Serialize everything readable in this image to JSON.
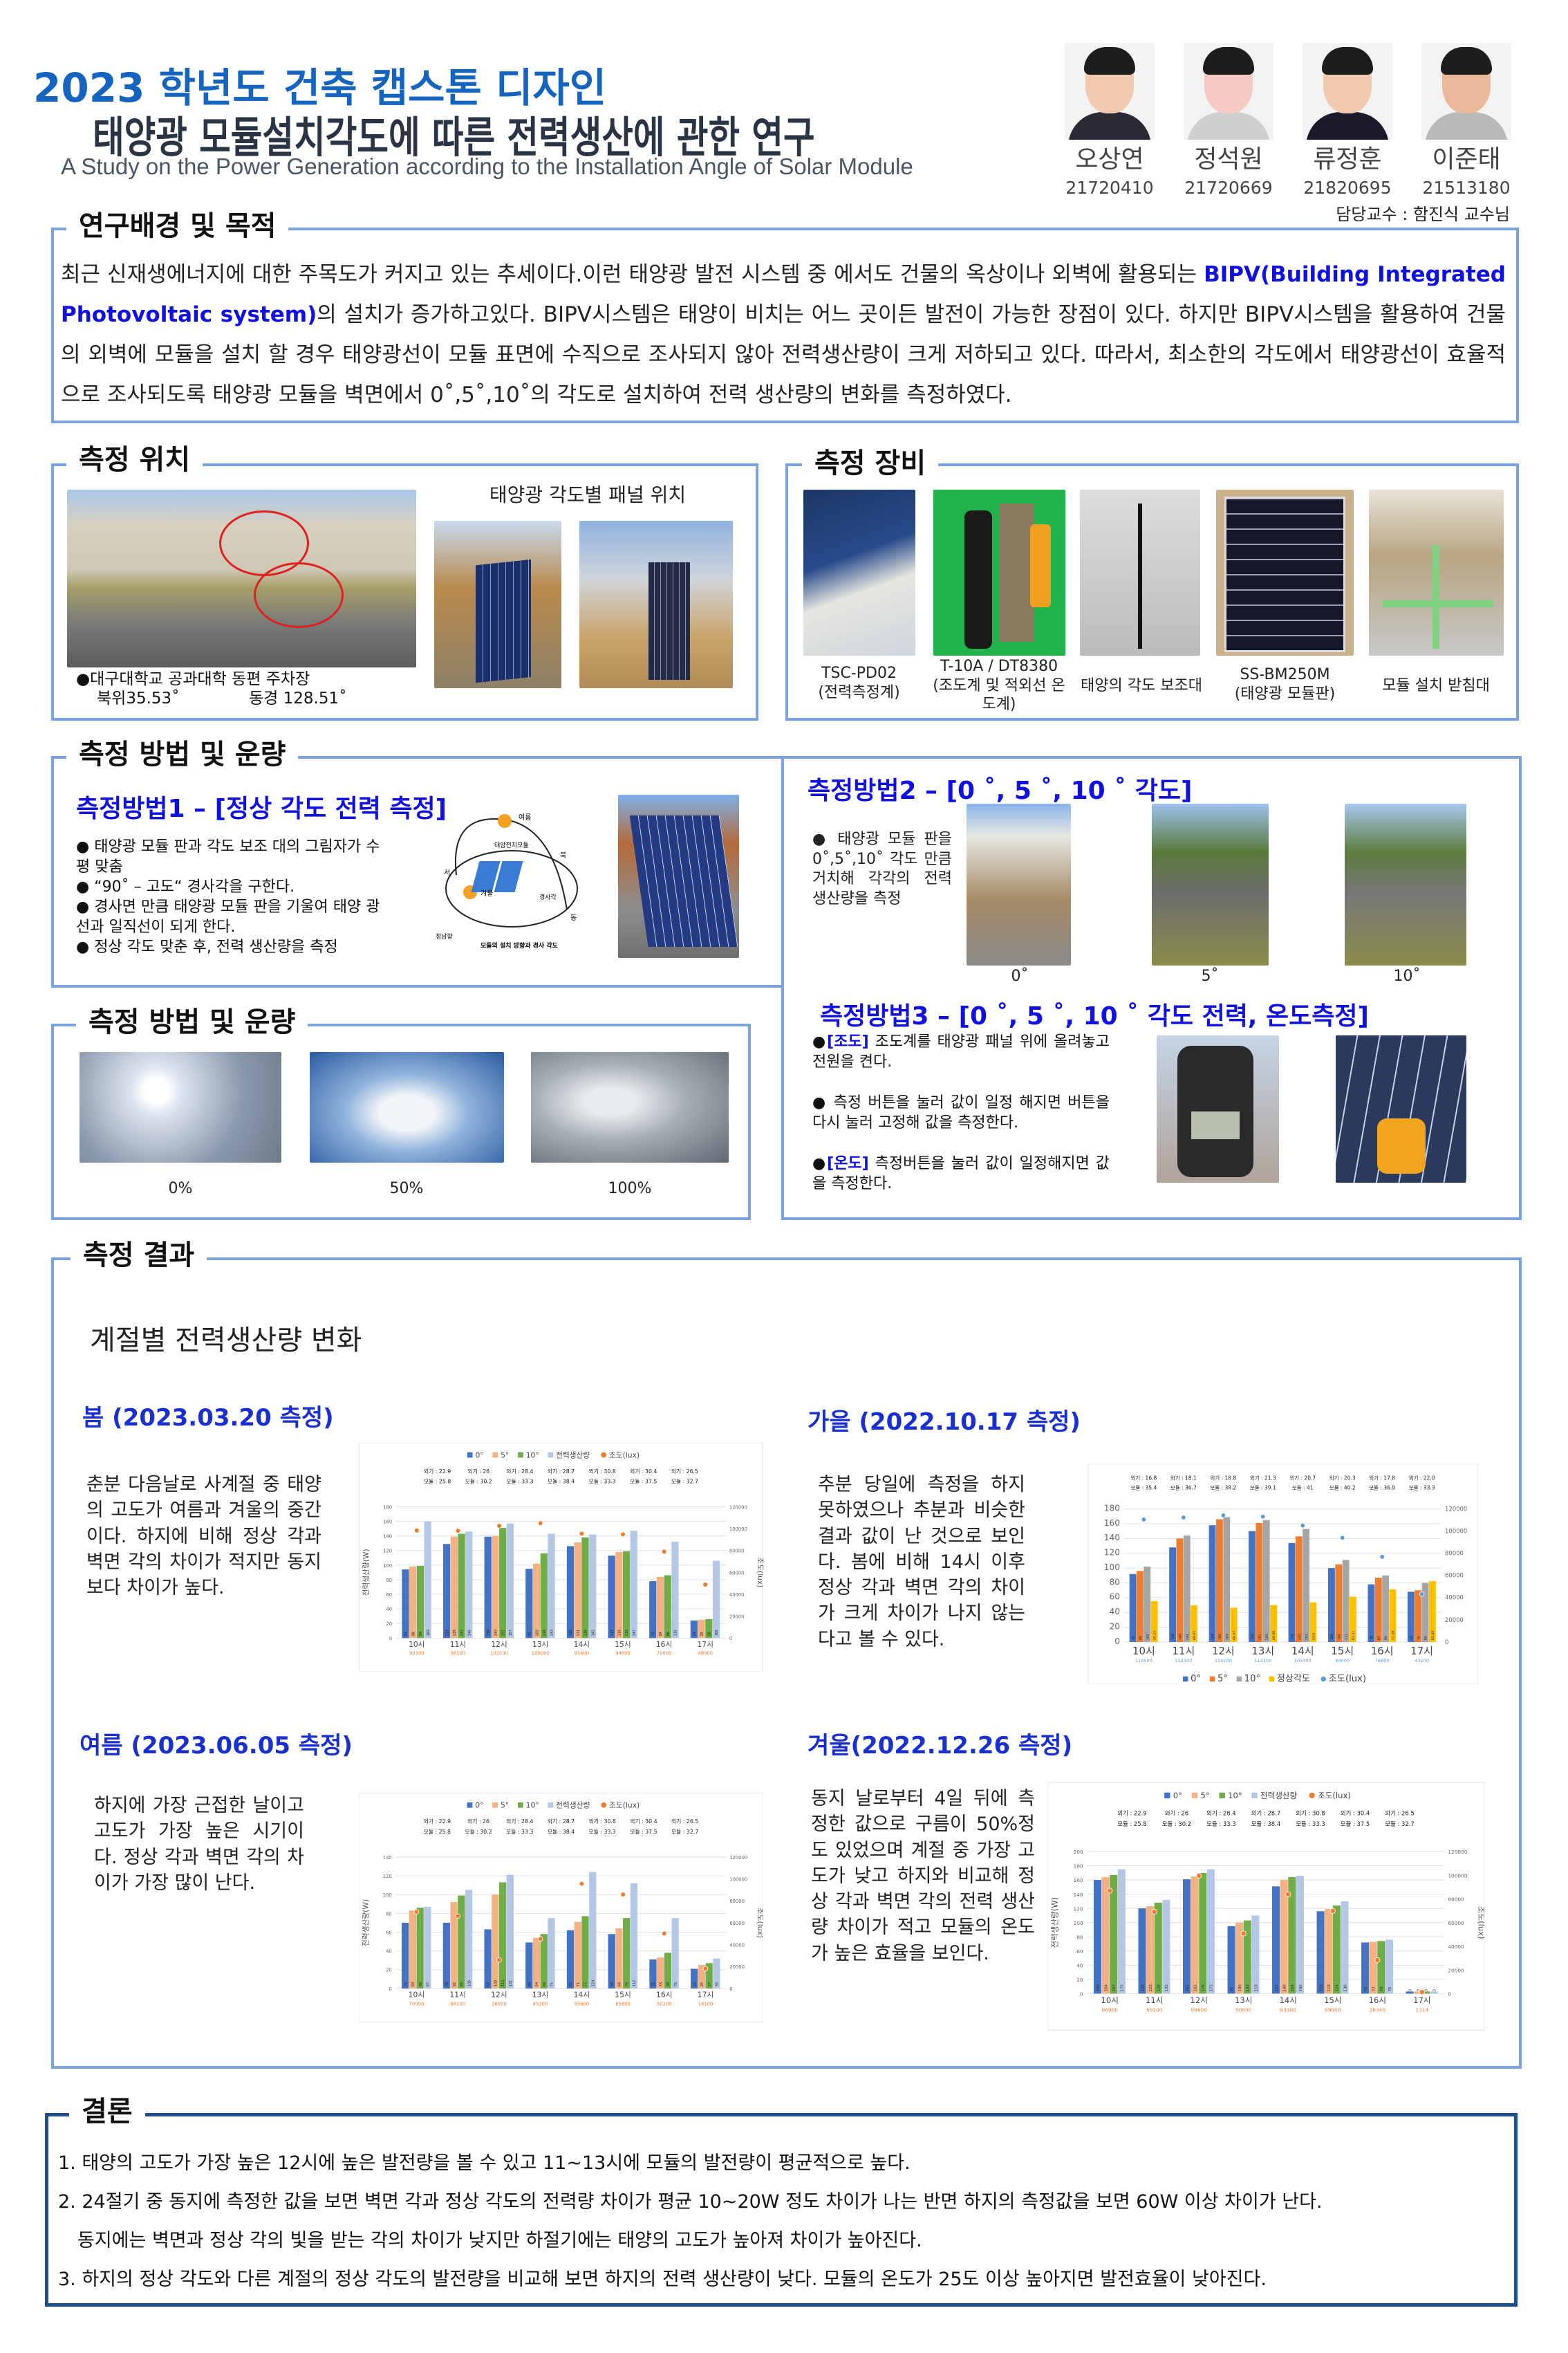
{
  "header": {
    "course": "2023 학년도 건축 캡스톤 디자인",
    "title": "태양광 모듈설치각도에 따른 전력생산에 관한 연구",
    "subtitle": "A Study on the Power Generation according to the Installation Angle of Solar Module",
    "members": [
      {
        "name": "오상연",
        "id": "21720410"
      },
      {
        "name": "정석원",
        "id": "21720669"
      },
      {
        "name": "류정훈",
        "id": "21820695"
      },
      {
        "name": "이준태",
        "id": "21513180"
      }
    ],
    "advisor": "담당교수 : 함진식 교수님"
  },
  "background": {
    "title": "연구배경 및 목적",
    "text_1": "최근 신재생에너지에 대한 주목도가 커지고 있는 추세이다.이런 태양광 발전 시스템 중 에서도 건물의 옥상이나 외벽에 활용되는 ",
    "highlight": "BIPV(Building Integrated Photovoltaic system)",
    "text_2": "의 설치가 증가하고있다. BIPV시스템은 태양이 비치는 어느 곳이든 발전이 가능한 장점이 있다. 하지만 BIPV시스템을 활용하여 건물의 외벽에 모듈을 설치 할 경우 태양광선이 모듈 표면에 수직으로 조사되지 않아 전력생산량이 크게 저하되고 있다. 따라서, 최소한의 각도에서 태양광선이 효율적으로 조사되도록 태양광 모듈을 벽면에서 0˚,5˚,10˚의 각도로 설치하여 전력 생산량의 변화를 측정하였다."
  },
  "location": {
    "title": "측정 위치",
    "panel_label": "태양광 각도별 패널 위치",
    "caption_1": "●대구대학교 공과대학 동편 주차장",
    "lat": "북위35.53˚",
    "lon": "동경 128.51˚"
  },
  "equipment": {
    "title": "측정 장비",
    "items": [
      {
        "model": "TSC-PD02",
        "desc": "(전력측정계)"
      },
      {
        "model": "T-10A / DT8380",
        "desc": "(조도계 및 적외선 온도계)"
      },
      {
        "model": "",
        "desc": "태양의 각도 보조대"
      },
      {
        "model": "SS-BM250M",
        "desc": "(태양광 모듈판)"
      },
      {
        "model": "",
        "desc": "모듈 설치 받침대"
      }
    ]
  },
  "method": {
    "title": "측정 방법 및 운량",
    "m1_title": "측정방법1 – [정상 각도 전력 측정]",
    "m1_bullets": [
      "● 태양광 모듈 판과 각도 보조 대의 그림자가 수평 맞춤",
      "● “90˚ – 고도“ 경사각을 구한다.",
      "● 경사면 만큼 태양광 모듈 판을 기울여 태양 광선과 일직선이 되게 한다.",
      "● 정상 각도 맞춘 후, 전력 생산량을 측정"
    ],
    "diagram": {
      "summer": "여름",
      "winter": "겨울",
      "module": "태양전지모듈",
      "north": "북",
      "west": "서",
      "east": "동",
      "south": "정남향",
      "tilt": "경사각",
      "caption": "모듈의 설치 방향과 경사 각도"
    },
    "m2_title": "측정방법2 – [0 ˚, 5 ˚, 10 ˚  각도]",
    "m2_text": "● 태양광 모듈 판을 0˚,5˚,10˚ 각도 만큼 거치해 각각의 전력 생산량을 측정",
    "m2_labels": [
      "0˚",
      "5˚",
      "10˚"
    ],
    "m3_title": "측정방법3 – [0 ˚, 5 ˚, 10 ˚  각도 전력, 온도측정]",
    "m3_items": [
      {
        "tag": "[조도]",
        "text": " 조도계를 태양광 패널 위에 올려놓고 전원을 켠다."
      },
      {
        "tag": "",
        "text": " 측정 버튼을 눌러 값이 일정 해지면 버튼을 다시 눌러 고정해 값을 측정한다."
      },
      {
        "tag": "[온도]",
        "text": " 측정버튼을 눌러 값이 일정해지면 값을 측정한다."
      }
    ],
    "cloud_title": "측정 방법 및 운량",
    "cloud_labels": [
      "0%",
      "50%",
      "100%"
    ]
  },
  "results": {
    "title": "측정 결과",
    "subtitle": "계절별 전력생산량 변화",
    "spring": {
      "heading": "봄 (2023.03.20 측정)",
      "text": "춘분 다음날로 사계절 중 태양의 고도가 여름과 겨울의 중간이다. 하지에 비해 정상 각과 벽면 각의 차이가 적지만 동지보다 차이가 높다."
    },
    "autumn": {
      "heading": "가을 (2022.10.17 측정)",
      "text": "추분 당일에 측정을 하지 못하였으나 추분과 비슷한 결과 값이 난 것으로 보인다. 봄에 비해 14시 이후 정상 각과 벽면 각의 차이가 크게 차이가 나지 않는다고 볼 수 있다."
    },
    "summer": {
      "heading": "여름 (2023.06.05 측정)",
      "text": "하지에 가장 근접한 날이고 고도가 가장 높은 시기이다. 정상 각과 벽면 각의 차이가 가장 많이 난다."
    },
    "winter": {
      "heading": "겨울(2022.12.26 측정)",
      "text": "동지 날로부터 4일 뒤에 측정한 값으로 구름이 50%정도 있었으며 계절 중 가장 고도가 낮고 하지와 비교해 정상 각과 벽면 각의 전력 생산량 차이가 적고 모듈의 온도가 높은 효율을 보인다."
    }
  },
  "conclusion": {
    "title": "결론",
    "lines": [
      "1. 태양의 고도가 가장 높은 12시에 높은 발전량을 볼 수 있고 11~13시에 모듈의 발전량이 평균적으로 높다.",
      "2. 24절기 중 동지에 측정한 값을 보면 벽면 각과 정상 각도의 전력량 차이가 평균 10~20W 정도 차이가 나는 반면 하지의 측정값을 보면 60W 이상 차이가 난다.",
      "동지에는 벽면과 정상 각의 빛을 받는 각의 차이가 낮지만 하절기에는 태양의 고도가 높아져 차이가 높아진다.",
      "3. 하지의 정상 각도와 다른 계절의 정상 각도의 발전량을 비교해 보면 하지의 전력 생산량이 낮다. 모듈의 온도가 25도 이상 높아지면 발전효율이 낮아진다."
    ]
  },
  "chart_data": [
    {
      "id": "spring",
      "type": "bar",
      "categories": [
        "10시",
        "11시",
        "12시",
        "13시",
        "14시",
        "15시",
        "16시",
        "17시"
      ],
      "series": [
        {
          "name": "0°",
          "color": "#4472c4",
          "values": [
            94,
            129,
            139,
            95,
            126,
            113,
            78,
            24
          ]
        },
        {
          "name": "5°",
          "color": "#f4b183",
          "values": [
            98,
            139,
            140,
            102,
            131,
            118,
            84,
            25
          ]
        },
        {
          "name": "10°",
          "color": "#70ad47",
          "values": [
            99,
            143,
            151,
            116,
            138,
            119,
            86,
            26
          ]
        },
        {
          "name": "전력생산량",
          "color": "#b4c7e7",
          "values": [
            160,
            146,
            157,
            143,
            142,
            147,
            132,
            106
          ]
        }
      ],
      "lux": {
        "name": "조도(lux)",
        "color": "#ed7d31",
        "values": [
          98300,
          98100,
          102500,
          105000,
          95400,
          94800,
          79000,
          48900
        ]
      },
      "temps": {
        "outdoor": [
          "외기 : 22.9",
          "외기 : 26",
          "외기 : 28.4",
          "외기 : 28.7",
          "외기 : 30.8",
          "외기 : 30.4",
          "외기 : 26.5"
        ],
        "module": [
          "모듈 : 25.8",
          "모듈 : 30.2",
          "모듈 : 33.3",
          "모듈 : 38.4",
          "모듈 : 33.3",
          "모듈 : 37.5",
          "모듈 : 32.7"
        ]
      },
      "ylim": [
        0,
        180
      ],
      "ystep": 20,
      "y2lim": [
        0,
        120000
      ],
      "y2step": 20000,
      "ylabel": "전력생산량(W)",
      "y2label": "조도(lux)",
      "legend": "top",
      "grid": true
    },
    {
      "id": "autumn",
      "type": "bar",
      "categories": [
        "10시",
        "11시",
        "12시",
        "13시",
        "14시",
        "15시",
        "16시",
        "17시"
      ],
      "series": [
        {
          "name": "0°",
          "color": "#4472c4",
          "values": [
            92,
            128,
            158,
            150,
            134,
            100,
            78,
            68
          ]
        },
        {
          "name": "5°",
          "color": "#ed7d31",
          "values": [
            96,
            140,
            166,
            161,
            143,
            105,
            87,
            70
          ]
        },
        {
          "name": "10°",
          "color": "#a5a5a5",
          "values": [
            102,
            144,
            169,
            165,
            153,
            111,
            90,
            80
          ]
        },
        {
          "name": "정상각도",
          "color": "#ffc000",
          "values": [
            55.22,
            49.65,
            46.47,
            49.98,
            53.6,
            61.31,
            71.28,
            82.49
          ]
        }
      ],
      "lux": {
        "name": "조도(lux)",
        "color": "#5b9bd5",
        "values": [
          110500,
          112300,
          114200,
          113100,
          105000,
          94000,
          76800,
          43200
        ]
      },
      "temps": {
        "outdoor": [
          "외기 : 16.8",
          "외기 : 18.1",
          "외기 : 18.8",
          "외기 : 21.3",
          "외기 : 20.7",
          "외기 : 20.3",
          "외기 : 17.8",
          "외기 : 22.0"
        ],
        "module": [
          "모듈 : 35.4",
          "모듈 : 36.7",
          "모듈 : 38.2",
          "모듈 : 39.1",
          "모듈 : 41",
          "모듈 : 40.2",
          "모듈 : 36.9",
          "모듈 : 33.3"
        ]
      },
      "ylim": [
        0,
        180
      ],
      "ystep": 20,
      "y2lim": [
        0,
        120000
      ],
      "y2step": 20000,
      "ylabel": "",
      "y2label": "",
      "legend": "bottom",
      "grid": true
    },
    {
      "id": "summer",
      "type": "bar",
      "categories": [
        "10시",
        "11시",
        "12시",
        "13시",
        "14시",
        "15시",
        "16시",
        "17시"
      ],
      "series": [
        {
          "name": "0°",
          "color": "#4472c4",
          "values": [
            70,
            70,
            63,
            49,
            62,
            58,
            31,
            21
          ]
        },
        {
          "name": "5°",
          "color": "#f4b183",
          "values": [
            83,
            92,
            100,
            54,
            71,
            64,
            33,
            25
          ]
        },
        {
          "name": "10°",
          "color": "#70ad47",
          "values": [
            86,
            99,
            113,
            58,
            77,
            75,
            38,
            27
          ]
        },
        {
          "name": "전력생산량",
          "color": "#b4c7e7",
          "values": [
            87,
            105,
            121,
            75,
            124,
            112,
            75,
            32
          ]
        }
      ],
      "lux": {
        "name": "조도(lux)",
        "color": "#ed7d31",
        "values": [
          70000,
          66100,
          26000,
          45200,
          95600,
          85800,
          50200,
          18100
        ]
      },
      "temps": {
        "outdoor": [
          "외기 : 22.9",
          "외기 : 26",
          "외기 : 28.4",
          "외기 : 28.7",
          "외기 : 30.8",
          "외기 : 30.4",
          "외기 : 26.5"
        ],
        "module": [
          "모듈 : 25.8",
          "모듈 : 30.2",
          "모듈 : 33.3",
          "모듈 : 38.4",
          "모듈 : 33.3",
          "모듈 : 37.5",
          "모듈 : 32.7"
        ]
      },
      "ylim": [
        0,
        140
      ],
      "ystep": 20,
      "y2lim": [
        0,
        120000
      ],
      "y2step": 20000,
      "ylabel": "전력생산량(W)",
      "y2label": "조도(lux)",
      "legend": "top",
      "grid": true
    },
    {
      "id": "winter",
      "type": "bar",
      "categories": [
        "10시",
        "11시",
        "12시",
        "13시",
        "14시",
        "15시",
        "16시",
        "17시"
      ],
      "series": [
        {
          "name": "0°",
          "color": "#4472c4",
          "values": [
            160,
            120,
            161,
            95,
            151,
            116,
            72,
            3
          ]
        },
        {
          "name": "5°",
          "color": "#f4b183",
          "values": [
            164,
            123,
            165,
            100,
            160,
            119,
            73,
            3
          ]
        },
        {
          "name": "10°",
          "color": "#70ad47",
          "values": [
            167,
            128,
            170,
            103,
            164,
            124,
            74,
            3
          ]
        },
        {
          "name": "전력생산량",
          "color": "#b4c7e7",
          "values": [
            175,
            132,
            175,
            110,
            166,
            130,
            76,
            3
          ]
        }
      ],
      "lux": {
        "name": "조도(lux)",
        "color": "#ed7d31",
        "values": [
          86900,
          69100,
          99600,
          50800,
          83900,
          69900,
          28340,
          1314
        ]
      },
      "temps": {
        "outdoor": [
          "외기 : 22.9",
          "외기 : 26",
          "외기 : 28.4",
          "외기 : 28.7",
          "외기 : 30.8",
          "외기 : 30.4",
          "외기 : 26.5"
        ],
        "module": [
          "모듈 : 25.8",
          "모듈 : 30.2",
          "모듈 : 33.3",
          "모듈 : 38.4",
          "모듈 : 33.3",
          "모듈 : 37.5",
          "모듈 : 32.7"
        ]
      },
      "ylim": [
        0,
        200
      ],
      "ystep": 20,
      "y2lim": [
        0,
        120000
      ],
      "y2step": 20000,
      "ylabel": "전력생산량(W)",
      "y2label": "조도(lux)",
      "legend": "top",
      "grid": true
    }
  ]
}
